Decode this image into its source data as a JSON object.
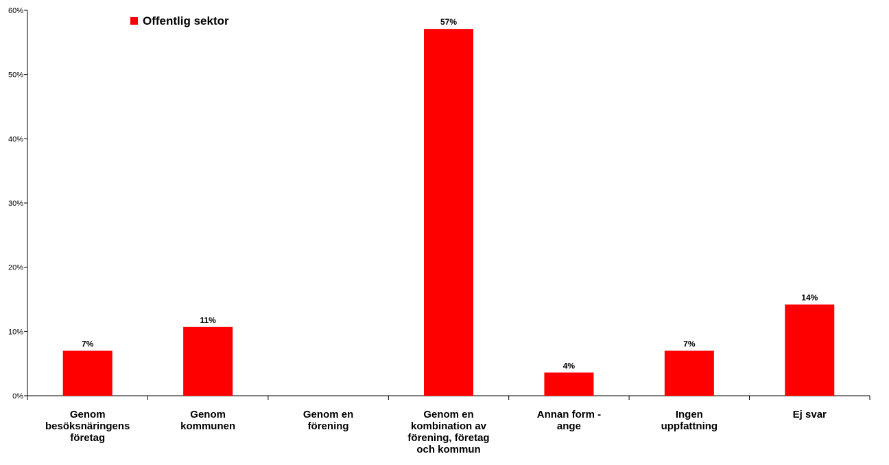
{
  "chart_data": {
    "type": "bar",
    "categories": [
      [
        "Genom",
        "besöksnäringens",
        "företag"
      ],
      [
        "Genom",
        "kommunen"
      ],
      [
        "Genom en",
        "förening"
      ],
      [
        "Genom en",
        "kombination av",
        "förening, företag",
        "och kommun"
      ],
      [
        "Annan form -",
        "ange"
      ],
      [
        "Ingen",
        "uppfattning"
      ],
      [
        "Ej svar"
      ]
    ],
    "series": [
      {
        "name": "Offentlig sektor",
        "color": "#ff0000",
        "values": [
          7,
          10.7,
          0,
          57.1,
          3.6,
          7,
          14.2
        ],
        "data_labels": [
          "7%",
          "11%",
          "",
          "57%",
          "4%",
          "7%",
          "14%"
        ]
      }
    ],
    "ylim": [
      0,
      60
    ],
    "yticks": [
      0,
      10,
      20,
      30,
      40,
      50,
      60
    ],
    "ytick_labels": [
      "0%",
      "10%",
      "20%",
      "30%",
      "40%",
      "50%",
      "60%"
    ],
    "grid": false,
    "legend": {
      "placement": "top-left",
      "entries": [
        "Offentlig sektor"
      ]
    }
  }
}
